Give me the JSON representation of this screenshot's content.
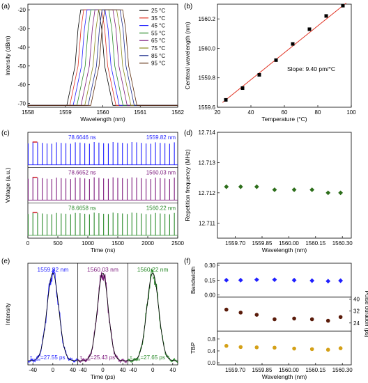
{
  "panels": {
    "a": {
      "label": "(a)"
    },
    "b": {
      "label": "(b)"
    },
    "c": {
      "label": "(c)"
    },
    "d": {
      "label": "(d)"
    },
    "e": {
      "label": "(e)"
    },
    "f": {
      "label": "(f)"
    }
  },
  "colors": {
    "blue": "#1f1fff",
    "purple": "#7d1a7d",
    "green": "#2a8a2a",
    "darkgreen": "#2d6e1b",
    "brown": "#5a1b0a",
    "gold": "#d4a017",
    "red": "#e03020",
    "black": "#000000"
  },
  "chart_data": [
    {
      "id": "a",
      "type": "line",
      "xlabel": "Wavelength (nm)",
      "ylabel": "Intensity (dBm)",
      "xlim": [
        1558,
        1562
      ],
      "ylim": [
        -72,
        -17
      ],
      "xticks": [
        "1558",
        "1559",
        "1560",
        "1561",
        "1562"
      ],
      "yticks": [
        "-20",
        "-30",
        "-40",
        "-50",
        "-60",
        "-70"
      ],
      "ytick_values": [
        -20,
        -30,
        -40,
        -50,
        -60,
        -70
      ],
      "series": [
        {
          "name": "25 °C",
          "center": 1559.65,
          "color": "#000000"
        },
        {
          "name": "35 °C",
          "center": 1559.73,
          "color": "#e03020"
        },
        {
          "name": "45 °C",
          "center": 1559.82,
          "color": "#1f1fff"
        },
        {
          "name": "55 °C",
          "center": 1559.92,
          "color": "#2a8a2a"
        },
        {
          "name": "65 °C",
          "center": 1560.03,
          "color": "#7d1a7d"
        },
        {
          "name": "75 °C",
          "center": 1560.13,
          "color": "#8a8a1a"
        },
        {
          "name": "85 °C",
          "center": 1560.22,
          "color": "#1a2a8a"
        },
        {
          "name": "95 °C",
          "center": 1560.29,
          "color": "#5a2a0a"
        }
      ],
      "peak": -20,
      "floor": -71
    },
    {
      "id": "b",
      "type": "scatter",
      "xlabel": "Temperature (°C)",
      "ylabel": "Centeral wavelength (nm)",
      "xlim": [
        20,
        100
      ],
      "ylim": [
        1559.6,
        1560.3
      ],
      "xticks": [
        "20",
        "40",
        "60",
        "80",
        "100"
      ],
      "yticks": [
        "1559.6",
        "1559.8",
        "1560.0",
        "1560.2"
      ],
      "x": [
        25,
        35,
        45,
        55,
        65,
        75,
        85,
        95
      ],
      "y": [
        1559.65,
        1559.73,
        1559.82,
        1559.92,
        1560.03,
        1560.13,
        1560.22,
        1560.29
      ],
      "annotation": "Slope: 9.40 pm/°C"
    },
    {
      "id": "c",
      "type": "line",
      "xlabel": "Time (ns)",
      "ylabel": "Voltage (a.u.)",
      "xlim": [
        0,
        2500
      ],
      "xticks": [
        "0",
        "500",
        "1000",
        "1500",
        "2000",
        "2500"
      ],
      "series": [
        {
          "name": "1559.82 nm",
          "period_label": "78.6646 ns",
          "period": 78.6646,
          "color": "#1f1fff"
        },
        {
          "name": "1560.03 nm",
          "period_label": "78.6652 ns",
          "period": 78.6652,
          "color": "#7d1a7d"
        },
        {
          "name": "1560.22 nm",
          "period_label": "78.6658 ns",
          "period": 78.6658,
          "color": "#2a8a2a"
        }
      ]
    },
    {
      "id": "d",
      "type": "scatter",
      "xlabel": "Wavelength (nm)",
      "ylabel": "Repetition frequency (MHz)",
      "xlim": [
        1559.6,
        1560.35
      ],
      "ylim": [
        12.7105,
        12.714
      ],
      "xticks": [
        "1559.70",
        "1559.85",
        "1560.00",
        "1560.15",
        "1560.30"
      ],
      "yticks": [
        "12.711",
        "12.712",
        "12.713",
        "12.714"
      ],
      "x": [
        1559.65,
        1559.73,
        1559.82,
        1559.92,
        1560.03,
        1560.13,
        1560.22,
        1560.29
      ],
      "y": [
        12.7122,
        12.7122,
        12.7122,
        12.7121,
        12.7121,
        12.7121,
        12.712,
        12.712
      ]
    },
    {
      "id": "e",
      "type": "line",
      "xlabel": "Time (ps)",
      "ylabel": "Intensity",
      "xlim": [
        -50,
        50
      ],
      "xticks": [
        "-40",
        "0",
        "40",
        "-40",
        "0",
        "40",
        "-40",
        "0",
        "40"
      ],
      "series": [
        {
          "name": "1559.82 nm",
          "tau_label": "τ",
          "tau_sub": "pulse",
          "tau_value": "=27.55 ps",
          "fwhm": 27.55,
          "color": "#1f1fff"
        },
        {
          "name": "1560.03 nm",
          "tau_label": "τ",
          "tau_sub": "pulse",
          "tau_value": "=25.43 ps",
          "fwhm": 25.43,
          "color": "#7d1a7d"
        },
        {
          "name": "1560.22 nm",
          "tau_label": "τ",
          "tau_sub": "pulse",
          "tau_value": "=27.65 ps",
          "fwhm": 27.65,
          "color": "#2a8a2a"
        }
      ]
    },
    {
      "id": "f",
      "type": "scatter",
      "xlabel": "Wavelength (nm)",
      "xlim": [
        1559.6,
        1560.35
      ],
      "xticks": [
        "1559.70",
        "1559.85",
        "1560.00",
        "1560.15",
        "1560.30"
      ],
      "x": [
        1559.65,
        1559.73,
        1559.82,
        1559.92,
        1560.03,
        1560.13,
        1560.22,
        1560.29
      ],
      "subplots": [
        {
          "ylabel": "Bandwidth",
          "ylim": [
            0,
            0.3
          ],
          "yticks": [
            "0.00",
            "0.15",
            "0.30"
          ],
          "y": [
            0.15,
            0.15,
            0.155,
            0.155,
            0.15,
            0.145,
            0.14,
            0.145
          ],
          "marker": "diamond",
          "color": "#1f1fff",
          "axis_side": "left"
        },
        {
          "ylabel": "Pulse duration (ps)",
          "ylim": [
            20,
            40
          ],
          "yticks": [
            "24",
            "32",
            "40"
          ],
          "y": [
            33,
            31,
            29.5,
            26.5,
            27,
            26.5,
            25.5,
            28
          ],
          "marker": "circle",
          "color": "#5a1b0a",
          "axis_side": "right"
        },
        {
          "ylabel": "TBP",
          "ylim": [
            0,
            1.0
          ],
          "yticks": [
            "0.0",
            "0.4",
            "0.8"
          ],
          "y": [
            0.57,
            0.53,
            0.52,
            0.51,
            0.48,
            0.46,
            0.44,
            0.49
          ],
          "marker": "circle",
          "color": "#d4a017",
          "axis_side": "left"
        }
      ]
    }
  ]
}
